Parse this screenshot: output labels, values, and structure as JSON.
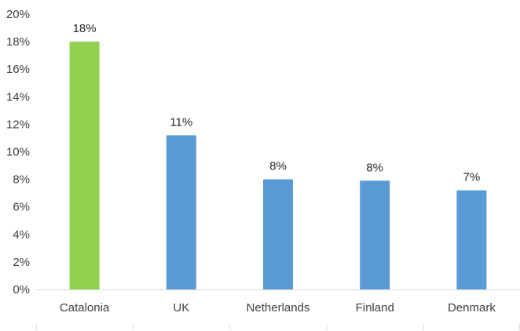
{
  "chart_data": {
    "type": "bar",
    "title": "",
    "xlabel": "",
    "ylabel": "",
    "categories": [
      "Catalonia",
      "UK",
      "Netherlands",
      "Finland",
      "Denmark"
    ],
    "values": [
      18,
      11.2,
      8,
      7.9,
      7.2
    ],
    "data_labels": [
      "18%",
      "11%",
      "8%",
      "8%",
      "7%"
    ],
    "ylim": [
      0,
      20
    ],
    "y_ticks": [
      0,
      2,
      4,
      6,
      8,
      10,
      12,
      14,
      16,
      18,
      20
    ],
    "y_tick_labels": [
      "0%",
      "2%",
      "4%",
      "6%",
      "8%",
      "10%",
      "12%",
      "14%",
      "16%",
      "18%",
      "20%"
    ],
    "grid": false,
    "legend": "none",
    "bar_colors": [
      "#92d050",
      "#5b9bd5",
      "#5b9bd5",
      "#5b9bd5",
      "#5b9bd5"
    ],
    "axis_color": "#d9d9d9"
  }
}
